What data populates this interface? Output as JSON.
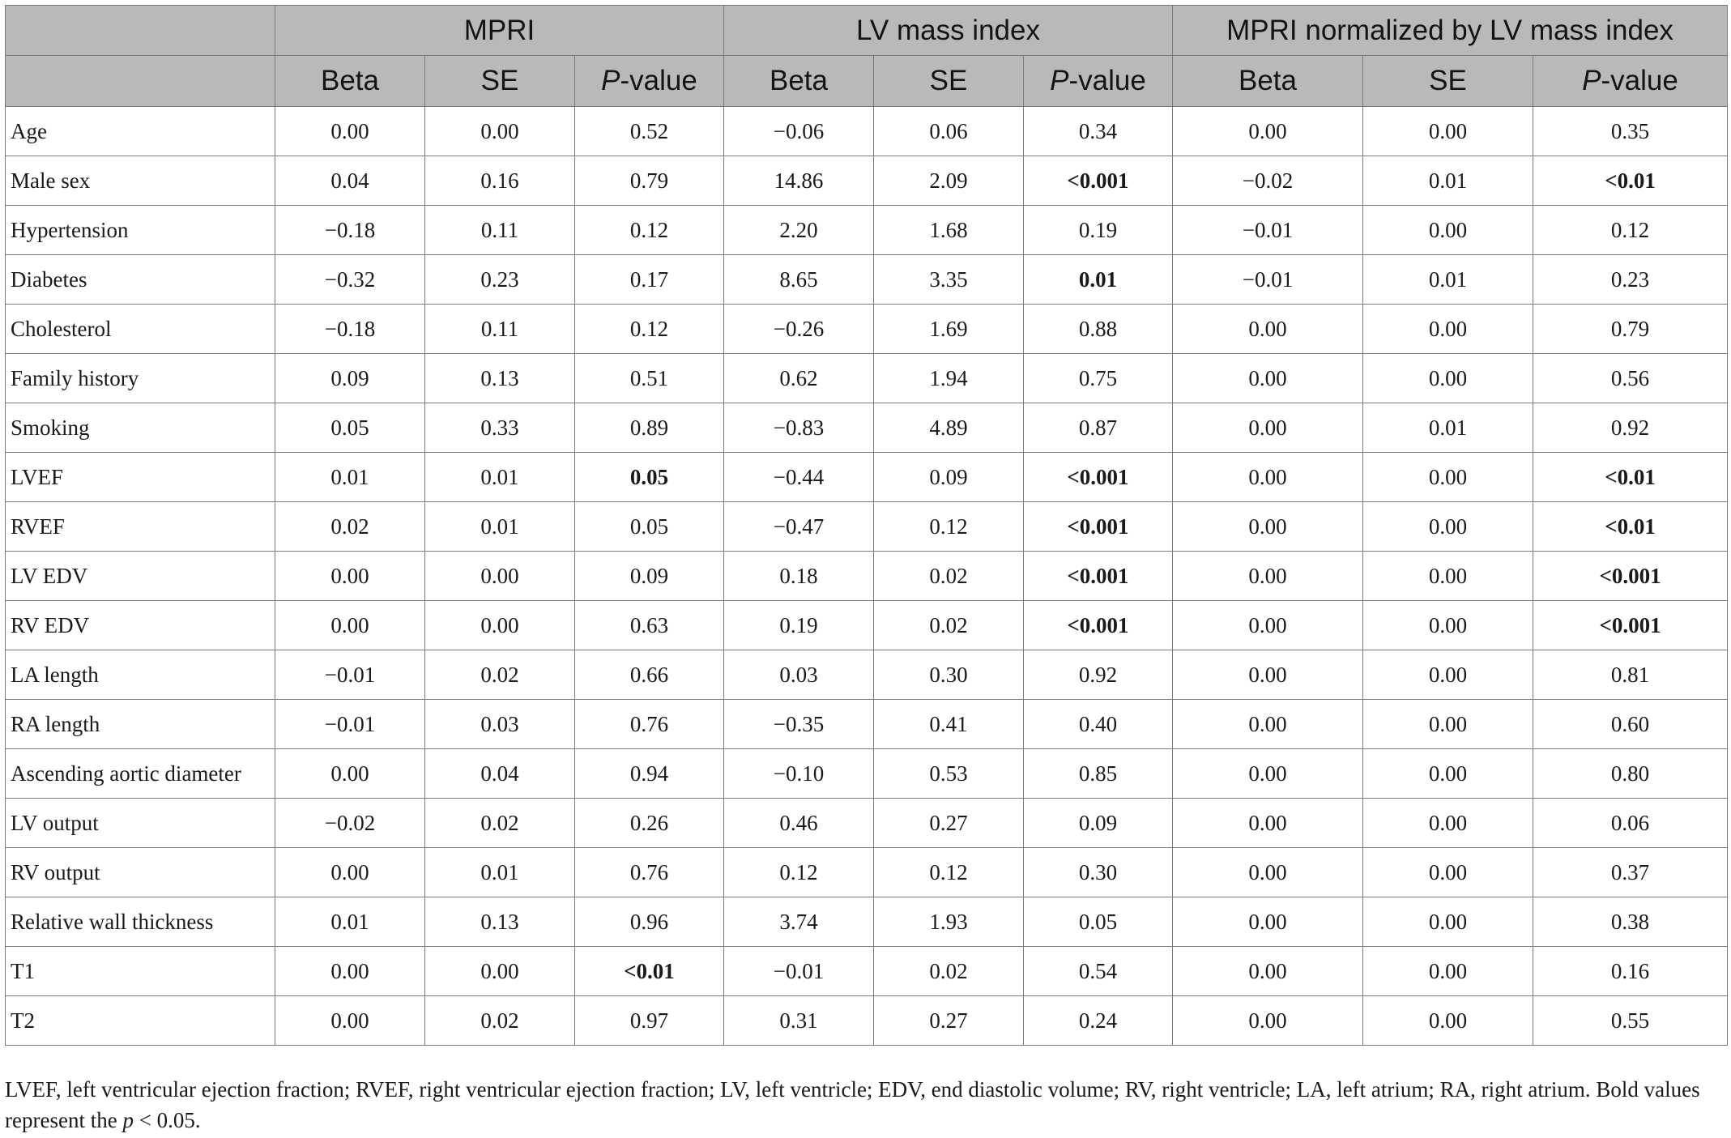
{
  "table": {
    "group_headers": [
      "MPRI",
      "LV mass index",
      "MPRI normalized by LV mass index"
    ],
    "sub_headers": {
      "beta": "Beta",
      "se": "SE",
      "p_italic": "P",
      "p_rest": "-value"
    },
    "rows": [
      {
        "label": "Age",
        "cells": [
          {
            "v": "0.00"
          },
          {
            "v": "0.00"
          },
          {
            "v": "0.52"
          },
          {
            "v": "−0.06"
          },
          {
            "v": "0.06"
          },
          {
            "v": "0.34"
          },
          {
            "v": "0.00"
          },
          {
            "v": "0.00"
          },
          {
            "v": "0.35"
          }
        ]
      },
      {
        "label": "Male sex",
        "cells": [
          {
            "v": "0.04"
          },
          {
            "v": "0.16"
          },
          {
            "v": "0.79"
          },
          {
            "v": "14.86"
          },
          {
            "v": "2.09"
          },
          {
            "v": "<0.001",
            "bold": true
          },
          {
            "v": "−0.02"
          },
          {
            "v": "0.01"
          },
          {
            "v": "<0.01",
            "bold": true
          }
        ]
      },
      {
        "label": "Hypertension",
        "cells": [
          {
            "v": "−0.18"
          },
          {
            "v": "0.11"
          },
          {
            "v": "0.12"
          },
          {
            "v": "2.20"
          },
          {
            "v": "1.68"
          },
          {
            "v": "0.19"
          },
          {
            "v": "−0.01"
          },
          {
            "v": "0.00"
          },
          {
            "v": "0.12"
          }
        ]
      },
      {
        "label": "Diabetes",
        "cells": [
          {
            "v": "−0.32"
          },
          {
            "v": "0.23"
          },
          {
            "v": "0.17"
          },
          {
            "v": "8.65"
          },
          {
            "v": "3.35"
          },
          {
            "v": "0.01",
            "bold": true
          },
          {
            "v": "−0.01"
          },
          {
            "v": "0.01"
          },
          {
            "v": "0.23"
          }
        ]
      },
      {
        "label": "Cholesterol",
        "cells": [
          {
            "v": "−0.18"
          },
          {
            "v": "0.11"
          },
          {
            "v": "0.12"
          },
          {
            "v": "−0.26"
          },
          {
            "v": "1.69"
          },
          {
            "v": "0.88"
          },
          {
            "v": "0.00"
          },
          {
            "v": "0.00"
          },
          {
            "v": "0.79"
          }
        ]
      },
      {
        "label": "Family history",
        "cells": [
          {
            "v": "0.09"
          },
          {
            "v": "0.13"
          },
          {
            "v": "0.51"
          },
          {
            "v": "0.62"
          },
          {
            "v": "1.94"
          },
          {
            "v": "0.75"
          },
          {
            "v": "0.00"
          },
          {
            "v": "0.00"
          },
          {
            "v": "0.56"
          }
        ]
      },
      {
        "label": "Smoking",
        "cells": [
          {
            "v": "0.05"
          },
          {
            "v": "0.33"
          },
          {
            "v": "0.89"
          },
          {
            "v": "−0.83"
          },
          {
            "v": "4.89"
          },
          {
            "v": "0.87"
          },
          {
            "v": "0.00"
          },
          {
            "v": "0.01"
          },
          {
            "v": "0.92"
          }
        ]
      },
      {
        "label": "LVEF",
        "cells": [
          {
            "v": "0.01"
          },
          {
            "v": "0.01"
          },
          {
            "v": "0.05",
            "bold": true
          },
          {
            "v": "−0.44"
          },
          {
            "v": "0.09"
          },
          {
            "v": "<0.001",
            "bold": true
          },
          {
            "v": "0.00"
          },
          {
            "v": "0.00"
          },
          {
            "v": "<0.01",
            "bold": true
          }
        ]
      },
      {
        "label": "RVEF",
        "cells": [
          {
            "v": "0.02"
          },
          {
            "v": "0.01"
          },
          {
            "v": "0.05"
          },
          {
            "v": "−0.47"
          },
          {
            "v": "0.12"
          },
          {
            "v": "<0.001",
            "bold": true
          },
          {
            "v": "0.00"
          },
          {
            "v": "0.00"
          },
          {
            "v": "<0.01",
            "bold": true
          }
        ]
      },
      {
        "label": "LV EDV",
        "cells": [
          {
            "v": "0.00"
          },
          {
            "v": "0.00"
          },
          {
            "v": "0.09"
          },
          {
            "v": "0.18"
          },
          {
            "v": "0.02"
          },
          {
            "v": "<0.001",
            "bold": true
          },
          {
            "v": "0.00"
          },
          {
            "v": "0.00"
          },
          {
            "v": "<0.001",
            "bold": true
          }
        ]
      },
      {
        "label": "RV EDV",
        "cells": [
          {
            "v": "0.00"
          },
          {
            "v": "0.00"
          },
          {
            "v": "0.63"
          },
          {
            "v": "0.19"
          },
          {
            "v": "0.02"
          },
          {
            "v": "<0.001",
            "bold": true
          },
          {
            "v": "0.00"
          },
          {
            "v": "0.00"
          },
          {
            "v": "<0.001",
            "bold": true
          }
        ]
      },
      {
        "label": "LA length",
        "cells": [
          {
            "v": "−0.01"
          },
          {
            "v": "0.02"
          },
          {
            "v": "0.66"
          },
          {
            "v": "0.03"
          },
          {
            "v": "0.30"
          },
          {
            "v": "0.92"
          },
          {
            "v": "0.00"
          },
          {
            "v": "0.00"
          },
          {
            "v": "0.81"
          }
        ]
      },
      {
        "label": "RA length",
        "cells": [
          {
            "v": "−0.01"
          },
          {
            "v": "0.03"
          },
          {
            "v": "0.76"
          },
          {
            "v": "−0.35"
          },
          {
            "v": "0.41"
          },
          {
            "v": "0.40"
          },
          {
            "v": "0.00"
          },
          {
            "v": "0.00"
          },
          {
            "v": "0.60"
          }
        ]
      },
      {
        "label": "Ascending aortic diameter",
        "cells": [
          {
            "v": "0.00"
          },
          {
            "v": "0.04"
          },
          {
            "v": "0.94"
          },
          {
            "v": "−0.10"
          },
          {
            "v": "0.53"
          },
          {
            "v": "0.85"
          },
          {
            "v": "0.00"
          },
          {
            "v": "0.00"
          },
          {
            "v": "0.80"
          }
        ]
      },
      {
        "label": "LV output",
        "cells": [
          {
            "v": "−0.02"
          },
          {
            "v": "0.02"
          },
          {
            "v": "0.26"
          },
          {
            "v": "0.46"
          },
          {
            "v": "0.27"
          },
          {
            "v": "0.09"
          },
          {
            "v": "0.00"
          },
          {
            "v": "0.00"
          },
          {
            "v": "0.06"
          }
        ]
      },
      {
        "label": "RV output",
        "cells": [
          {
            "v": "0.00"
          },
          {
            "v": "0.01"
          },
          {
            "v": "0.76"
          },
          {
            "v": "0.12"
          },
          {
            "v": "0.12"
          },
          {
            "v": "0.30"
          },
          {
            "v": "0.00"
          },
          {
            "v": "0.00"
          },
          {
            "v": "0.37"
          }
        ]
      },
      {
        "label": "Relative wall thickness",
        "cells": [
          {
            "v": "0.01"
          },
          {
            "v": "0.13"
          },
          {
            "v": "0.96"
          },
          {
            "v": "3.74"
          },
          {
            "v": "1.93"
          },
          {
            "v": "0.05"
          },
          {
            "v": "0.00"
          },
          {
            "v": "0.00"
          },
          {
            "v": "0.38"
          }
        ]
      },
      {
        "label": "T1",
        "cells": [
          {
            "v": "0.00"
          },
          {
            "v": "0.00"
          },
          {
            "v": "<0.01",
            "bold": true
          },
          {
            "v": "−0.01"
          },
          {
            "v": "0.02"
          },
          {
            "v": "0.54"
          },
          {
            "v": "0.00"
          },
          {
            "v": "0.00"
          },
          {
            "v": "0.16"
          }
        ]
      },
      {
        "label": "T2",
        "cells": [
          {
            "v": "0.00"
          },
          {
            "v": "0.02"
          },
          {
            "v": "0.97"
          },
          {
            "v": "0.31"
          },
          {
            "v": "0.27"
          },
          {
            "v": "0.24"
          },
          {
            "v": "0.00"
          },
          {
            "v": "0.00"
          },
          {
            "v": "0.55"
          }
        ]
      }
    ]
  },
  "footnote": {
    "text_before": "LVEF, left ventricular ejection fraction; RVEF, right ventricular ejection fraction; LV, left ventricle; EDV, end diastolic volume; RV, right ventricle; LA, left atrium; RA, right atrium. Bold values represent the ",
    "p_italic": "p",
    "text_after": " < 0.05."
  }
}
